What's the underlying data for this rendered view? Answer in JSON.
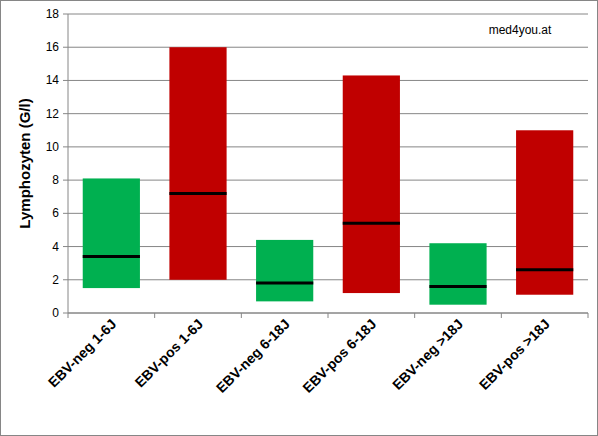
{
  "chart_data": {
    "type": "range_bar",
    "y_label": "Lymphozyten (G/l)",
    "annotation": "med4you.at",
    "categories": [
      "EBV-neg 1-6J",
      "EBV-pos 1-6J",
      "EBV-neg 6-18J",
      "EBV-pos 6-18J",
      "EBV-neg >18J",
      "EBV-pos >18J"
    ],
    "low": [
      1.5,
      2.0,
      0.7,
      1.2,
      0.5,
      1.1
    ],
    "high": [
      8.1,
      16.0,
      4.4,
      14.3,
      4.2,
      11.0
    ],
    "values": [
      3.4,
      7.2,
      1.8,
      5.4,
      1.6,
      2.6
    ],
    "colors": [
      "#00b050",
      "#c00000",
      "#00b050",
      "#c00000",
      "#00b050",
      "#c00000"
    ],
    "ylim": [
      0,
      18
    ],
    "yticks": [
      0,
      2,
      4,
      6,
      8,
      10,
      12,
      14,
      16,
      18
    ],
    "grid": true
  }
}
